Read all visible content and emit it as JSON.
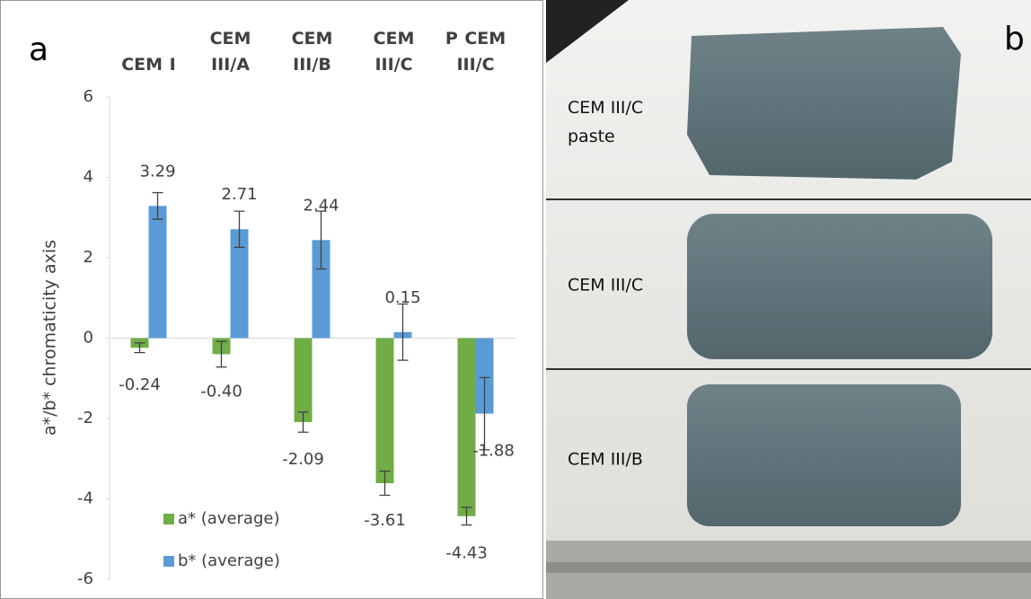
{
  "panel_a": {
    "label": "a"
  },
  "panel_b": {
    "label": "b",
    "photos": [
      "CEM III/C paste",
      "CEM III/C",
      "CEM III/B"
    ]
  },
  "chart_data": {
    "type": "bar",
    "y_label": "a*/b* chromaticity axis",
    "categories": [
      "CEM I",
      "CEM III/A",
      "CEM III/B",
      "CEM III/C",
      "P CEM III/C"
    ],
    "series": [
      {
        "name": "a* (average)",
        "color": "#70ad47",
        "values": [
          -0.24,
          -0.4,
          -2.09,
          -3.61,
          -4.43
        ],
        "value_labels": [
          "-0.24",
          "-0.40",
          "-2.09",
          "-3.61",
          "-4.43"
        ],
        "errors": [
          0.12,
          0.32,
          0.25,
          0.3,
          0.22
        ]
      },
      {
        "name": "b* (average)",
        "color": "#5b9bd5",
        "values": [
          3.29,
          2.71,
          2.44,
          0.15,
          -1.88
        ],
        "value_labels": [
          "3.29",
          "2.71",
          "2.44",
          "0.15",
          "-1.88"
        ],
        "errors": [
          0.33,
          0.45,
          0.72,
          0.7,
          0.9
        ]
      }
    ],
    "ylim": [
      -6,
      6
    ],
    "yticks": [
      -6,
      -4,
      -2,
      0,
      2,
      4,
      6
    ],
    "grid": false,
    "legend": "lower left"
  }
}
